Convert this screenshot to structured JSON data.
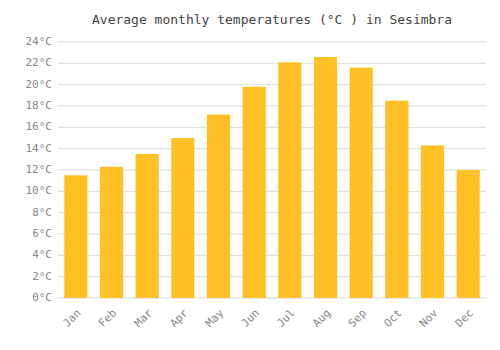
{
  "chart_data": {
    "type": "bar",
    "title": "Average monthly temperatures (°C ) in Sesimbra",
    "categories": [
      "Jan",
      "Feb",
      "Mar",
      "Apr",
      "May",
      "Jun",
      "Jul",
      "Aug",
      "Sep",
      "Oct",
      "Nov",
      "Dec"
    ],
    "values": [
      11.5,
      12.3,
      13.5,
      15.0,
      17.2,
      19.8,
      22.1,
      22.6,
      21.6,
      18.5,
      14.3,
      12.0
    ],
    "color": "#FFC125",
    "ylim": [
      0,
      24
    ],
    "yticks": [
      {
        "value": 0,
        "label": "0°C"
      },
      {
        "value": 2,
        "label": "2°C"
      },
      {
        "value": 4,
        "label": "4°C"
      },
      {
        "value": 6,
        "label": "6°C"
      },
      {
        "value": 8,
        "label": "8°C"
      },
      {
        "value": 10,
        "label": "10°C"
      },
      {
        "value": 12,
        "label": "12°C"
      },
      {
        "value": 14,
        "label": "14°C"
      },
      {
        "value": 16,
        "label": "16°C"
      },
      {
        "value": 18,
        "label": "18°C"
      },
      {
        "value": 20,
        "label": "20°C"
      },
      {
        "value": 22,
        "label": "22°C"
      },
      {
        "value": 24,
        "label": "24°C"
      }
    ],
    "grid": true
  }
}
